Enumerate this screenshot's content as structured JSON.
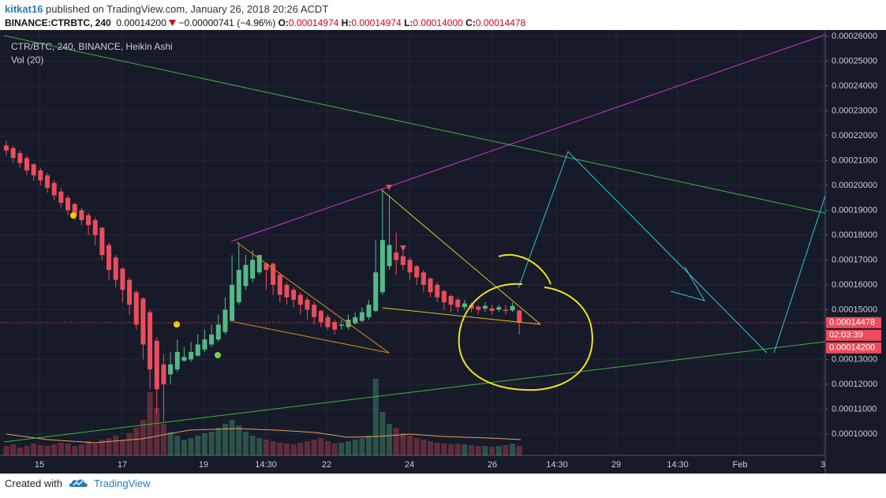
{
  "header": {
    "author": "kitkat16",
    "published": "published on TradingView.com, January 26, 2018 20:26 ACDT",
    "symbol": "BINANCE:CTRBTC, 240",
    "last": "0.00014200",
    "change": "−0.00000741 (−4.96%)",
    "o_label": "O:",
    "o": "0.00014974",
    "h_label": "H:",
    "h": "0.00014974",
    "l_label": "L:",
    "l": "0.00014000",
    "c_label": "C:",
    "c": "0.00014478"
  },
  "chart_data": {
    "type": "candlestick",
    "title": "CTR/BTC, 240, BINANCE, Heikin Ashi",
    "subtitle": "Vol (20)",
    "open": [
      0.000216,
      0.000215,
      0.000213,
      0.000211,
      0.0002085,
      0.000206,
      0.000204,
      0.000201,
      0.0001975,
      0.000195,
      0.0001925,
      0.00019,
      0.000188,
      0.000186,
      0.000183,
      0.000176,
      0.000171,
      0.0001665,
      0.000162,
      0.000157,
      0.0001545,
      0.000149,
      0.0001375,
      0.000128,
      0.000124,
      0.000126,
      0.0001295,
      0.00013,
      0.0001315,
      0.000134,
      0.000136,
      0.000138,
      0.000141,
      0.0001455,
      0.000153,
      0.0001595,
      0.0001625,
      0.000165,
      0.0001685,
      0.0001685,
      0.000164,
      0.00016,
      0.000158,
      0.000156,
      0.000154,
      0.000152,
      0.0001495,
      0.000147,
      0.000145,
      0.0001435,
      0.000143,
      0.0001445,
      0.0001455,
      0.000147,
      0.0001495,
      0.000157,
      0.0001675,
      0.000173,
      0.0001715,
      0.00017,
      0.0001675,
      0.000165,
      0.0001625,
      0.00016,
      0.0001575,
      0.0001555,
      0.000154,
      0.000151,
      0.000152,
      0.0001512,
      0.0001505,
      0.0001505,
      0.00015,
      0.00015,
      0.0001497,
      0.00014974
    ],
    "high": [
      0.000218,
      0.000216,
      0.000214,
      0.000212,
      0.000209,
      0.000207,
      0.000205,
      0.000202,
      0.000199,
      0.000196,
      0.000193,
      0.000191,
      0.000189,
      0.000187,
      0.000183,
      0.000177,
      0.000172,
      0.000167,
      0.000163,
      0.000158,
      0.000155,
      0.00015,
      0.000139,
      0.000132,
      0.000133,
      0.000138,
      0.000135,
      0.000137,
      0.00014,
      0.000142,
      0.000144,
      0.000148,
      0.000155,
      0.000172,
      0.000177,
      0.000172,
      0.000174,
      0.000172,
      0.000169,
      0.000169,
      0.000165,
      0.000161,
      0.000159,
      0.000157,
      0.000155,
      0.000153,
      0.00015,
      0.000148,
      0.000146,
      0.000146,
      0.000148,
      0.000149,
      0.000151,
      0.000154,
      0.000178,
      0.000198,
      0.000196,
      0.000181,
      0.000175,
      0.000171,
      0.000168,
      0.000166,
      0.000163,
      0.000161,
      0.000158,
      0.000156,
      0.000155,
      0.000154,
      0.000153,
      0.000152,
      0.000153,
      0.000152,
      0.000152,
      0.000152,
      0.000153,
      0.00014974
    ],
    "low": [
      0.000212,
      0.000209,
      0.000207,
      0.000204,
      0.000202,
      0.0002,
      0.000197,
      0.000194,
      0.000191,
      0.000188,
      0.000186,
      0.000184,
      0.00018,
      0.000176,
      0.00017,
      0.000162,
      0.000159,
      0.000153,
      0.000148,
      0.000142,
      0.00013,
      0.000118,
      0.000108,
      0.000105,
      0.00012,
      0.000125,
      0.000129,
      0.000129,
      0.000131,
      0.000133,
      0.000135,
      0.000137,
      0.00014,
      0.000145,
      0.000152,
      0.000158,
      0.000161,
      0.000164,
      0.000158,
      0.000156,
      0.000153,
      0.000152,
      0.000151,
      0.000148,
      0.000146,
      0.000144,
      0.000143,
      0.000142,
      0.00014,
      0.000142,
      0.000142,
      0.000144,
      0.000145,
      0.000146,
      0.000149,
      0.000156,
      0.000166,
      0.000164,
      0.000166,
      0.000162,
      0.00016,
      0.000157,
      0.000155,
      0.000153,
      0.00015,
      0.000149,
      0.000149,
      0.00015,
      0.000149,
      0.000148,
      0.000149,
      0.000148,
      0.000149,
      0.000148,
      0.000149,
      0.00014
    ],
    "close": [
      0.000214,
      0.000211,
      0.000209,
      0.000206,
      0.000204,
      0.000202,
      0.000199,
      0.000196,
      0.000193,
      0.00019,
      0.000188,
      0.000186,
      0.000184,
      0.00018,
      0.000172,
      0.000166,
      0.000162,
      0.000158,
      0.000152,
      0.000144,
      0.000136,
      0.000126,
      0.000118,
      0.00012,
      0.000128,
      0.000133,
      0.000131,
      0.000133,
      0.000136,
      0.000138,
      0.00014,
      0.000144,
      0.00015,
      0.00016,
      0.000166,
      0.000168,
      0.00017,
      0.000172,
      0.000166,
      0.00016,
      0.000156,
      0.000155,
      0.000154,
      0.000152,
      0.00015,
      0.000147,
      0.000145,
      0.000143,
      0.000142,
      0.000144,
      0.000146,
      0.000147,
      0.000149,
      0.000152,
      0.000165,
      0.000178,
      0.000176,
      0.00017,
      0.000168,
      0.000165,
      0.000163,
      0.00016,
      0.000157,
      0.000155,
      0.000153,
      0.000152,
      0.000151,
      0.0001525,
      0.0001505,
      0.00015,
      0.0001515,
      0.0001495,
      0.000151,
      0.0001495,
      0.0001515,
      0.00014478
    ],
    "volume": [
      12,
      14,
      10,
      12,
      15,
      13,
      12,
      14,
      16,
      15,
      12,
      14,
      18,
      15,
      20,
      22,
      25,
      20,
      28,
      35,
      45,
      80,
      60,
      40,
      30,
      25,
      20,
      22,
      25,
      28,
      30,
      35,
      40,
      45,
      38,
      30,
      25,
      22,
      20,
      18,
      16,
      15,
      14,
      16,
      18,
      20,
      22,
      18,
      15,
      16,
      18,
      20,
      22,
      25,
      97,
      55,
      40,
      35,
      28,
      25,
      22,
      20,
      18,
      16,
      15,
      14,
      15,
      14,
      13,
      12,
      12,
      11,
      12,
      13,
      15,
      12
    ],
    "up_color": "#53b987",
    "down_color": "#eb4d5c",
    "ylim": [
      9.14e-05,
      0.0002625
    ],
    "yticks": [
      {
        "value": 0.0001,
        "label": "0.00010000"
      },
      {
        "value": 0.00011,
        "label": "0.00011000"
      },
      {
        "value": 0.00012,
        "label": "0.00012000"
      },
      {
        "value": 0.00013,
        "label": "0.00013000"
      },
      {
        "value": 0.00015,
        "label": "0.00015000"
      },
      {
        "value": 0.00016,
        "label": "0.00016000"
      },
      {
        "value": 0.00017,
        "label": "0.00017000"
      },
      {
        "value": 0.00018,
        "label": "0.00018000"
      },
      {
        "value": 0.00019,
        "label": "0.00019000"
      },
      {
        "value": 0.0002,
        "label": "0.00020000"
      },
      {
        "value": 0.00021,
        "label": "0.00021000"
      },
      {
        "value": 0.00022,
        "label": "0.00022000"
      },
      {
        "value": 0.00023,
        "label": "0.00023000"
      },
      {
        "value": 0.00024,
        "label": "0.00024000"
      },
      {
        "value": 0.00025,
        "label": "0.00025000"
      },
      {
        "value": 0.00026,
        "label": "0.00026000"
      }
    ],
    "xtick_labels": [
      "15",
      "17",
      "19",
      "14:30",
      "22",
      "24",
      "26",
      "14:30",
      "29",
      "14:30",
      "Feb",
      "3"
    ],
    "price_labels": [
      "0.00014478",
      "02:03:39",
      "0.00014200"
    ],
    "grid": true
  },
  "footer": {
    "created": "Created with",
    "brand": "TradingView"
  }
}
